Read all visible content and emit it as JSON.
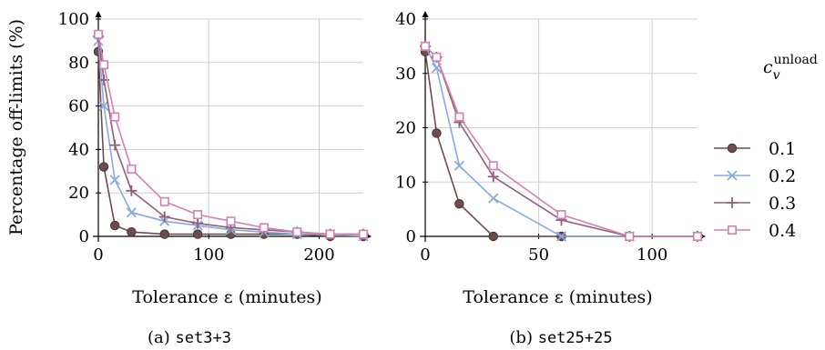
{
  "figure": {
    "ylabel": "Percentage off-limits (%)",
    "legend": {
      "title_base": "c",
      "title_sub": "v",
      "title_sup": "unload",
      "entries": [
        {
          "label": "0.1",
          "color": "#6e4c4e",
          "marker": "circle"
        },
        {
          "label": "0.2",
          "color": "#88aadd",
          "marker": "x"
        },
        {
          "label": "0.3",
          "color": "#90607a",
          "marker": "plus"
        },
        {
          "label": "0.4",
          "color": "#d67fb0",
          "marker": "square"
        }
      ]
    }
  },
  "chart_data": [
    {
      "type": "line",
      "caption_prefix": "(a)",
      "caption_code": "set3+3",
      "xlabel": "Tolerance ε (minutes)",
      "ylabel": "Percentage off-limits (%)",
      "xlim": [
        0,
        240
      ],
      "ylim": [
        0,
        100
      ],
      "xticks": [
        0,
        100,
        200
      ],
      "yticks": [
        0,
        20,
        40,
        60,
        80,
        100
      ],
      "grid": true,
      "series": [
        {
          "name": "0.1",
          "x": [
            0,
            5,
            15,
            30,
            60,
            90,
            120,
            150,
            180,
            210,
            240
          ],
          "y": [
            85,
            32,
            5,
            2,
            1,
            1,
            1,
            1,
            1,
            0,
            0
          ]
        },
        {
          "name": "0.2",
          "x": [
            0,
            5,
            15,
            30,
            60,
            90,
            120,
            150,
            180,
            210,
            240
          ],
          "y": [
            90,
            60,
            26,
            11,
            7,
            5,
            3,
            2,
            1,
            1,
            0
          ]
        },
        {
          "name": "0.3",
          "x": [
            0,
            5,
            15,
            30,
            60,
            90,
            120,
            150,
            180,
            210,
            240
          ],
          "y": [
            92,
            72,
            42,
            21,
            9,
            6,
            4,
            3,
            2,
            1,
            1
          ]
        },
        {
          "name": "0.4",
          "x": [
            0,
            5,
            15,
            30,
            60,
            90,
            120,
            150,
            180,
            210,
            240
          ],
          "y": [
            93,
            79,
            55,
            31,
            16,
            10,
            7,
            4,
            2,
            1,
            1
          ]
        }
      ]
    },
    {
      "type": "line",
      "caption_prefix": "(b)",
      "caption_code": "set25+25",
      "xlabel": "Tolerance ε (minutes)",
      "ylabel": "",
      "xlim": [
        0,
        120
      ],
      "ylim": [
        0,
        40
      ],
      "xticks": [
        0,
        50,
        100
      ],
      "yticks": [
        0,
        10,
        20,
        30,
        40
      ],
      "grid": true,
      "series": [
        {
          "name": "0.1",
          "x": [
            0,
            5,
            15,
            30,
            60,
            90,
            120
          ],
          "y": [
            34,
            19,
            6,
            0,
            0,
            0,
            0
          ]
        },
        {
          "name": "0.2",
          "x": [
            0,
            5,
            15,
            30,
            60,
            90,
            120
          ],
          "y": [
            35,
            31,
            13,
            7,
            0,
            0,
            0
          ]
        },
        {
          "name": "0.3",
          "x": [
            0,
            5,
            15,
            30,
            60,
            90,
            120
          ],
          "y": [
            35,
            33,
            21,
            11,
            3,
            0,
            0
          ]
        },
        {
          "name": "0.4",
          "x": [
            0,
            5,
            15,
            30,
            60,
            90,
            120
          ],
          "y": [
            35,
            33,
            22,
            13,
            4,
            0,
            0
          ]
        }
      ]
    }
  ]
}
